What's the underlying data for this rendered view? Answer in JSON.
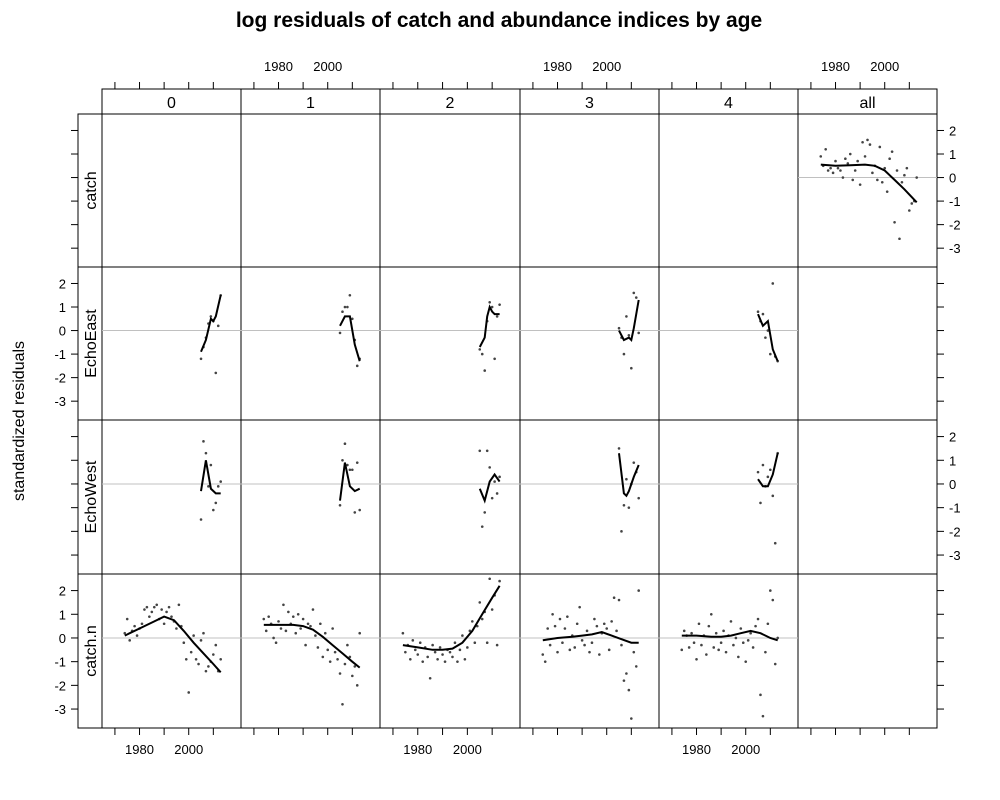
{
  "chart_data": {
    "type": "scatter",
    "title": "log residuals of catch and abundance indices by age",
    "ylabel": "standardized residuals",
    "xlim": [
      1968,
      2018
    ],
    "ylim": [
      -3.8,
      2.7
    ],
    "x_ticks": [
      1980,
      2000
    ],
    "y_ticks": [
      -3,
      -2,
      -1,
      0,
      1,
      2
    ],
    "columns": [
      "0",
      "1",
      "2",
      "3",
      "4",
      "all"
    ],
    "rows": [
      "catch",
      "EchoEast",
      "EchoWest",
      "catch.n"
    ],
    "zero_reference_line": true,
    "colors": {
      "strip": "#e6e6e6",
      "points": "#444444",
      "smooth": "#000000",
      "zero_line": "#c0c0c0"
    },
    "panels": [
      {
        "row": "catch",
        "col": "all",
        "x": [
          1974,
          1975,
          1976,
          1977,
          1978,
          1979,
          1980,
          1981,
          1982,
          1983,
          1984,
          1985,
          1986,
          1987,
          1988,
          1989,
          1990,
          1991,
          1992,
          1993,
          1994,
          1995,
          1996,
          1997,
          1998,
          1999,
          2000,
          2001,
          2002,
          2003,
          2004,
          2005,
          2006,
          2007,
          2008,
          2009,
          2010,
          2011,
          2012,
          2013
        ],
        "y": [
          0.9,
          0.5,
          1.2,
          0.3,
          0.4,
          0.2,
          0.7,
          0.4,
          0.3,
          0.0,
          0.8,
          0.6,
          1.0,
          -0.1,
          0.3,
          0.7,
          -0.3,
          1.5,
          0.9,
          1.6,
          1.4,
          0.2,
          0.5,
          -0.1,
          1.3,
          -0.2,
          0.4,
          -0.6,
          0.8,
          1.1,
          -1.9,
          0.3,
          -2.6,
          -0.2,
          0.1,
          0.4,
          -1.4,
          -1.1,
          -1.0,
          0.0
        ],
        "smooth": {
          "x": [
            1974,
            1980,
            1986,
            1992,
            1996,
            2000,
            2004,
            2008,
            2013
          ],
          "y": [
            0.55,
            0.5,
            0.52,
            0.55,
            0.5,
            0.3,
            -0.1,
            -0.5,
            -1.05
          ]
        }
      },
      {
        "row": "EchoEast",
        "col": "0",
        "x": [
          2005,
          2006,
          2007,
          2008,
          2009,
          2010,
          2011,
          2012,
          2013
        ],
        "y": [
          -1.2,
          -0.7,
          -0.3,
          0.3,
          0.6,
          0.4,
          -1.8,
          0.2,
          1.5
        ],
        "smooth": {
          "x": [
            2005,
            2007,
            2009,
            2010,
            2011,
            2013
          ],
          "y": [
            -0.9,
            -0.4,
            0.5,
            0.4,
            0.6,
            1.5
          ]
        }
      },
      {
        "row": "EchoEast",
        "col": "1",
        "x": [
          2005,
          2006,
          2007,
          2008,
          2009,
          2010,
          2011,
          2012,
          2013
        ],
        "y": [
          -0.1,
          0.8,
          1.0,
          1.0,
          1.5,
          0.5,
          -0.4,
          -1.5,
          -1.2
        ],
        "smooth": {
          "x": [
            2005,
            2007,
            2009,
            2011,
            2013
          ],
          "y": [
            0.2,
            0.6,
            0.6,
            -0.6,
            -1.3
          ]
        }
      },
      {
        "row": "EchoEast",
        "col": "2",
        "x": [
          2005,
          2006,
          2007,
          2008,
          2009,
          2010,
          2011,
          2012,
          2013
        ],
        "y": [
          -0.8,
          -1.0,
          -1.7,
          0.4,
          1.2,
          1.0,
          -1.2,
          0.6,
          1.1
        ],
        "smooth": {
          "x": [
            2005,
            2007,
            2008,
            2009,
            2010,
            2011,
            2013
          ],
          "y": [
            -0.7,
            -0.3,
            0.6,
            1.0,
            0.8,
            0.7,
            0.7
          ]
        }
      },
      {
        "row": "EchoEast",
        "col": "3",
        "x": [
          2005,
          2006,
          2007,
          2008,
          2009,
          2010,
          2011,
          2012,
          2013
        ],
        "y": [
          0.1,
          -0.3,
          -1.0,
          0.6,
          -0.2,
          -1.6,
          1.6,
          1.4,
          -0.1
        ],
        "smooth": {
          "x": [
            2005,
            2007,
            2009,
            2010,
            2011,
            2013
          ],
          "y": [
            0.0,
            -0.4,
            -0.3,
            -0.4,
            0.1,
            1.3
          ]
        }
      },
      {
        "row": "EchoEast",
        "col": "4",
        "x": [
          2005,
          2006,
          2007,
          2008,
          2009,
          2010,
          2011,
          2012,
          2013
        ],
        "y": [
          0.8,
          0.4,
          0.7,
          -0.3,
          0.0,
          -1.0,
          2.0,
          -1.1,
          -1.3
        ],
        "smooth": {
          "x": [
            2005,
            2007,
            2009,
            2011,
            2013
          ],
          "y": [
            0.7,
            0.2,
            0.4,
            -0.8,
            -1.3
          ]
        }
      },
      {
        "row": "EchoWest",
        "col": "0",
        "x": [
          2005,
          2006,
          2007,
          2008,
          2009,
          2010,
          2011,
          2012,
          2013
        ],
        "y": [
          -1.5,
          1.8,
          1.3,
          -0.1,
          0.8,
          -1.1,
          -0.8,
          -0.1,
          0.1
        ],
        "smooth": {
          "x": [
            2005,
            2007,
            2009,
            2011,
            2013
          ],
          "y": [
            -0.3,
            1.0,
            -0.2,
            -0.4,
            -0.4
          ]
        }
      },
      {
        "row": "EchoWest",
        "col": "1",
        "x": [
          2005,
          2006,
          2007,
          2008,
          2009,
          2010,
          2011,
          2012,
          2013
        ],
        "y": [
          -0.9,
          1.0,
          1.7,
          0.8,
          0.6,
          0.6,
          -1.2,
          0.9,
          -1.1
        ],
        "smooth": {
          "x": [
            2005,
            2007,
            2009,
            2011,
            2013
          ],
          "y": [
            -0.7,
            0.9,
            -0.1,
            -0.3,
            -0.2
          ]
        }
      },
      {
        "row": "EchoWest",
        "col": "2",
        "x": [
          2005,
          2006,
          2007,
          2008,
          2009,
          2010,
          2011,
          2012,
          2013
        ],
        "y": [
          1.4,
          -1.8,
          -1.2,
          1.4,
          0.7,
          -0.6,
          0.1,
          -0.4,
          0.3
        ],
        "smooth": {
          "x": [
            2005,
            2007,
            2009,
            2011,
            2013
          ],
          "y": [
            -0.2,
            -0.7,
            0.1,
            0.4,
            0.1
          ]
        }
      },
      {
        "row": "EchoWest",
        "col": "3",
        "x": [
          2005,
          2006,
          2007,
          2008,
          2009,
          2010,
          2011,
          2012,
          2013
        ],
        "y": [
          1.5,
          -2.0,
          -0.9,
          0.2,
          -1.0,
          0.0,
          0.9,
          0.5,
          -0.6
        ],
        "smooth": {
          "x": [
            2005,
            2007,
            2008,
            2009,
            2011,
            2013
          ],
          "y": [
            1.3,
            -0.4,
            -0.5,
            -0.3,
            0.3,
            0.8
          ]
        }
      },
      {
        "row": "EchoWest",
        "col": "4",
        "x": [
          2005,
          2006,
          2007,
          2008,
          2009,
          2010,
          2011,
          2012,
          2013
        ],
        "y": [
          0.5,
          -0.8,
          0.8,
          -0.1,
          0.3,
          0.6,
          -0.5,
          -2.5,
          1.3
        ],
        "smooth": {
          "x": [
            2005,
            2007,
            2009,
            2011,
            2013
          ],
          "y": [
            0.2,
            -0.1,
            -0.1,
            0.4,
            1.3
          ]
        }
      },
      {
        "row": "catch.n",
        "col": "0",
        "x": [
          1974,
          1975,
          1976,
          1977,
          1978,
          1979,
          1980,
          1981,
          1982,
          1983,
          1984,
          1985,
          1986,
          1987,
          1988,
          1989,
          1990,
          1991,
          1992,
          1993,
          1994,
          1995,
          1996,
          1997,
          1998,
          1999,
          2000,
          2001,
          2002,
          2003,
          2004,
          2005,
          2006,
          2007,
          2008,
          2009,
          2010,
          2011,
          2012,
          2013
        ],
        "y": [
          0.2,
          0.8,
          -0.1,
          0.3,
          0.5,
          0.1,
          0.4,
          0.6,
          1.2,
          1.3,
          0.9,
          1.1,
          1.3,
          1.4,
          0.8,
          1.2,
          0.6,
          1.1,
          1.3,
          0.9,
          0.7,
          0.4,
          1.4,
          0.5,
          -0.2,
          -0.9,
          -2.3,
          -0.6,
          0.1,
          -0.9,
          -1.1,
          -0.1,
          0.2,
          -1.4,
          -1.2,
          -1.0,
          -0.7,
          -0.3,
          -1.4,
          -0.9
        ],
        "smooth": {
          "x": [
            1974,
            1980,
            1986,
            1990,
            1994,
            1998,
            2002,
            2006,
            2010,
            2013
          ],
          "y": [
            0.1,
            0.4,
            0.7,
            0.9,
            0.75,
            0.3,
            -0.2,
            -0.65,
            -1.1,
            -1.45
          ]
        }
      },
      {
        "row": "catch.n",
        "col": "1",
        "x": [
          1974,
          1975,
          1976,
          1977,
          1978,
          1979,
          1980,
          1981,
          1982,
          1983,
          1984,
          1985,
          1986,
          1987,
          1988,
          1989,
          1990,
          1991,
          1992,
          1993,
          1994,
          1995,
          1996,
          1997,
          1998,
          1999,
          2000,
          2001,
          2002,
          2003,
          2004,
          2005,
          2006,
          2007,
          2008,
          2009,
          2010,
          2011,
          2012,
          2013
        ],
        "y": [
          0.8,
          0.3,
          0.9,
          0.6,
          0.0,
          -0.2,
          0.7,
          0.4,
          1.4,
          0.3,
          1.1,
          0.6,
          0.9,
          0.2,
          1.0,
          0.4,
          0.8,
          -0.3,
          0.6,
          0.5,
          1.2,
          0.1,
          -0.4,
          0.6,
          -0.8,
          0.2,
          -0.5,
          -1.0,
          0.4,
          -0.6,
          -0.9,
          -1.5,
          -2.8,
          -1.1,
          -0.3,
          -0.8,
          -1.6,
          -1.2,
          -2.0,
          0.2
        ],
        "smooth": {
          "x": [
            1974,
            1980,
            1986,
            1990,
            1994,
            1998,
            2002,
            2006,
            2010,
            2013
          ],
          "y": [
            0.55,
            0.55,
            0.55,
            0.5,
            0.35,
            0.05,
            -0.3,
            -0.65,
            -1.0,
            -1.25
          ]
        }
      },
      {
        "row": "catch.n",
        "col": "2",
        "x": [
          1974,
          1975,
          1976,
          1977,
          1978,
          1979,
          1980,
          1981,
          1982,
          1983,
          1984,
          1985,
          1986,
          1987,
          1988,
          1989,
          1990,
          1991,
          1992,
          1993,
          1994,
          1995,
          1996,
          1997,
          1998,
          1999,
          2000,
          2001,
          2002,
          2003,
          2004,
          2005,
          2006,
          2007,
          2008,
          2009,
          2010,
          2011,
          2012,
          2013
        ],
        "y": [
          0.2,
          -0.6,
          -0.3,
          -0.9,
          -0.1,
          -0.5,
          -0.7,
          -0.2,
          -1.0,
          -0.4,
          -0.8,
          -1.7,
          -0.3,
          -0.6,
          -0.9,
          -0.4,
          -0.7,
          -1.0,
          -0.5,
          -0.6,
          -0.8,
          -0.2,
          -1.0,
          -0.5,
          0.1,
          -0.9,
          -0.4,
          0.3,
          0.7,
          -0.2,
          0.5,
          1.5,
          0.8,
          1.1,
          -0.2,
          2.5,
          1.2,
          1.8,
          -0.3,
          2.4
        ],
        "smooth": {
          "x": [
            1974,
            1980,
            1986,
            1990,
            1994,
            1998,
            2002,
            2006,
            2010,
            2013
          ],
          "y": [
            -0.3,
            -0.4,
            -0.5,
            -0.5,
            -0.45,
            -0.2,
            0.3,
            1.0,
            1.7,
            2.2
          ]
        }
      },
      {
        "row": "catch.n",
        "col": "3",
        "x": [
          1974,
          1975,
          1976,
          1977,
          1978,
          1979,
          1980,
          1981,
          1982,
          1983,
          1984,
          1985,
          1986,
          1987,
          1988,
          1989,
          1990,
          1991,
          1992,
          1993,
          1994,
          1995,
          1996,
          1997,
          1998,
          1999,
          2000,
          2001,
          2002,
          2003,
          2004,
          2005,
          2006,
          2007,
          2008,
          2009,
          2010,
          2011,
          2012,
          2013
        ],
        "y": [
          -0.7,
          -1.0,
          0.4,
          -0.3,
          1.0,
          0.5,
          -0.6,
          0.8,
          -0.2,
          0.4,
          0.9,
          -0.5,
          0.1,
          -0.4,
          0.6,
          1.3,
          -0.1,
          -0.3,
          0.3,
          -0.6,
          -0.2,
          0.8,
          0.5,
          -0.7,
          0.2,
          0.6,
          0.4,
          -0.5,
          0.7,
          1.7,
          0.3,
          1.6,
          -0.3,
          -1.8,
          -1.5,
          -2.2,
          -3.4,
          -0.6,
          -1.2,
          2.0
        ],
        "smooth": {
          "x": [
            1974,
            1980,
            1986,
            1990,
            1994,
            1998,
            2002,
            2006,
            2010,
            2013
          ],
          "y": [
            -0.1,
            0.0,
            0.05,
            0.1,
            0.15,
            0.25,
            0.1,
            -0.05,
            -0.2,
            -0.2
          ]
        }
      },
      {
        "row": "catch.n",
        "col": "4",
        "x": [
          1974,
          1975,
          1976,
          1977,
          1978,
          1979,
          1980,
          1981,
          1982,
          1983,
          1984,
          1985,
          1986,
          1987,
          1988,
          1989,
          1990,
          1991,
          1992,
          1993,
          1994,
          1995,
          1996,
          1997,
          1998,
          1999,
          2000,
          2001,
          2002,
          2003,
          2004,
          2005,
          2006,
          2007,
          2008,
          2009,
          2010,
          2011,
          2012,
          2013
        ],
        "y": [
          -0.5,
          0.3,
          0.1,
          -0.4,
          0.2,
          -0.2,
          -0.9,
          0.6,
          -0.3,
          0.1,
          -0.7,
          0.5,
          1.0,
          -0.4,
          0.2,
          -0.5,
          -0.2,
          0.3,
          -0.6,
          0.1,
          0.7,
          -0.3,
          0.0,
          -0.8,
          0.4,
          -0.2,
          -1.0,
          -0.1,
          0.2,
          -0.4,
          0.5,
          0.8,
          -2.4,
          -3.3,
          -0.6,
          0.6,
          2.0,
          1.6,
          -1.1,
          0.0
        ],
        "smooth": {
          "x": [
            1974,
            1980,
            1986,
            1990,
            1994,
            1998,
            2002,
            2006,
            2010,
            2013
          ],
          "y": [
            0.1,
            0.1,
            0.05,
            0.05,
            0.1,
            0.2,
            0.3,
            0.2,
            0.0,
            -0.1
          ]
        }
      }
    ]
  }
}
